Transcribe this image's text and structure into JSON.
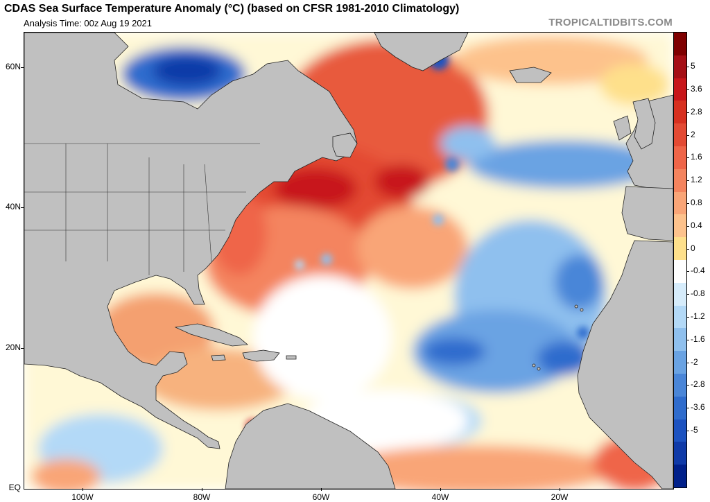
{
  "header": {
    "title": "CDAS Sea Surface Temperature Anomaly (°C) (based on CFSR 1981-2010 Climatology)",
    "analysis_time": "Analysis Time: 00z Aug 19 2021",
    "brand": "TROPICALTIDBITS.COM"
  },
  "map": {
    "region": "North Atlantic",
    "lon_range": [
      -110,
      0
    ],
    "lat_range": [
      0,
      65
    ],
    "land_color": "#c0c0c0",
    "ocean_neutral_color": "#ffffff",
    "lat_labels": [
      "60N",
      "40N",
      "20N",
      "EQ"
    ],
    "lon_labels": [
      "100W",
      "80W",
      "60W",
      "40W",
      "20W"
    ]
  },
  "colorbar": {
    "labels": [
      "5",
      "3.6",
      "2.8",
      "2",
      "1.6",
      "1.2",
      "0.8",
      "0.4",
      "0",
      "-0.4",
      "-0.8",
      "-1.2",
      "-1.6",
      "-2",
      "-2.8",
      "-3.6",
      "-5"
    ],
    "colors": [
      "#7f0000",
      "#a50f15",
      "#c8161a",
      "#d7301f",
      "#e34a33",
      "#ef6548",
      "#f4845e",
      "#f9a577",
      "#fdc28c",
      "#fee08b",
      "#ffffff",
      "#d6ecfb",
      "#b3d9f7",
      "#8fc0ee",
      "#6aa3e3",
      "#4a86d8",
      "#2f6ccd",
      "#1c52c0",
      "#0f3aa8",
      "#00208a"
    ]
  }
}
